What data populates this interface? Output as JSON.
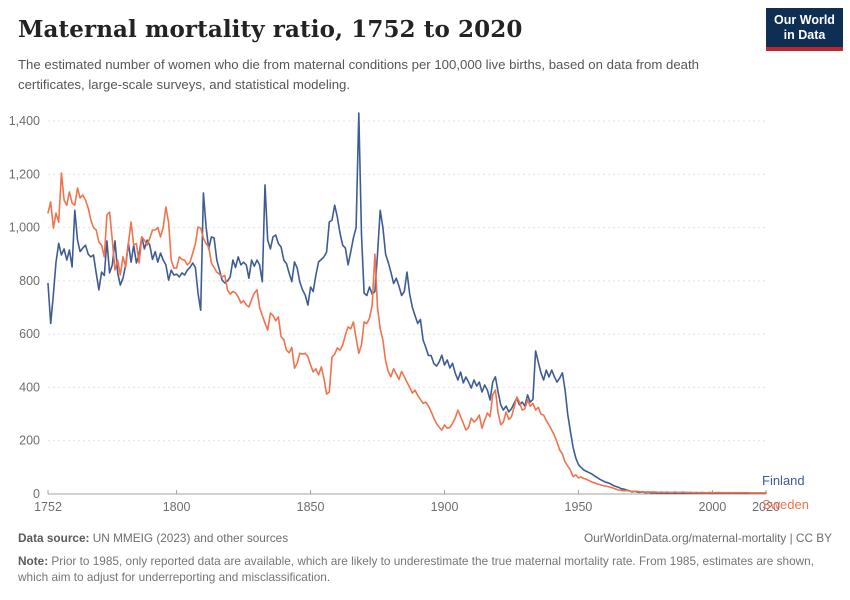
{
  "header": {
    "title": "Maternal mortality ratio, 1752 to 2020",
    "subtitle": "The estimated number of women who die from maternal conditions per 100,000 live births, based on data from death certificates, large-scale surveys, and statistical modeling."
  },
  "logo": {
    "line1": "Our World",
    "line2": "in Data",
    "bg_color": "#0f2e54",
    "accent_color": "#c0272d"
  },
  "chart_data": {
    "type": "line",
    "title": "Maternal mortality ratio, 1752 to 2020",
    "xlabel": "",
    "ylabel": "",
    "x_start": 1752,
    "x_end": 2020,
    "x_ticks": [
      1752,
      1800,
      1850,
      1900,
      1950,
      2000,
      2020
    ],
    "y_ticks": [
      0,
      200,
      400,
      600,
      800,
      1000,
      1200,
      1400
    ],
    "ylim": [
      0,
      1400
    ],
    "grid": "horizontal-dashed",
    "legend_position": "right-of-line-ends",
    "colors": {
      "grid": "#e1e1e1",
      "axis": "#a3a3a3",
      "tick_label": "#6e6e6e"
    },
    "series": [
      {
        "name": "Finland",
        "color": "#3e5c94",
        "values": [
          790,
          640,
          750,
          870,
          941,
          897,
          920,
          878,
          916,
          852,
          1065,
          953,
          910,
          923,
          934,
          900,
          890,
          897,
          829,
          766,
          833,
          820,
          950,
          830,
          860,
          950,
          830,
          784,
          810,
          860,
          942,
          870,
          934,
          867,
          900,
          965,
          920,
          953,
          934,
          880,
          910,
          870,
          904,
          878,
          860,
          803,
          840,
          822,
          825,
          815,
          830,
          822,
          840,
          850,
          867,
          850,
          754,
          690,
          1130,
          1002,
          920,
          965,
          961,
          878,
          840,
          803,
          792,
          800,
          815,
          878,
          850,
          890,
          860,
          870,
          860,
          810,
          878,
          855,
          878,
          860,
          797,
          1160,
          953,
          920,
          965,
          972,
          940,
          927,
          878,
          865,
          830,
          797,
          871,
          848,
          796,
          766,
          747,
          709,
          777,
          760,
          822,
          871,
          880,
          890,
          908,
          1021,
          1028,
          1084,
          1040,
          979,
          934,
          923,
          860,
          908,
          961,
          1000,
          1430,
          972,
          754,
          745,
          777,
          750,
          760,
          900,
          1065,
          1000,
          900,
          870,
          833,
          790,
          810,
          780,
          745,
          760,
          833,
          750,
          700,
          670,
          640,
          655,
          578,
          550,
          520,
          520,
          490,
          480,
          495,
          521,
          484,
          503,
          473,
          491,
          454,
          428,
          458,
          417,
          439,
          420,
          398,
          428,
          405,
          420,
          383,
          409,
          390,
          353,
          420,
          440,
          383,
          334,
          315,
          330,
          308,
          320,
          341,
          360,
          334,
          345,
          330,
          372,
          345,
          355,
          537,
          495,
          454,
          428,
          465,
          439,
          465,
          440,
          420,
          435,
          455,
          390,
          300,
          235,
          175,
          135,
          110,
          100,
          90,
          85,
          80,
          75,
          68,
          62,
          55,
          50,
          45,
          42,
          38,
          32,
          28,
          25,
          20,
          18,
          15,
          12,
          8,
          10,
          7,
          6,
          8,
          5,
          6,
          4,
          5,
          4,
          3,
          4,
          3,
          4,
          3,
          4,
          3,
          4,
          3,
          4,
          3,
          4,
          3,
          4,
          3,
          3,
          4,
          3,
          4,
          3,
          4,
          3,
          4,
          3,
          3,
          4,
          3,
          4,
          3,
          3,
          3,
          3,
          3,
          3,
          3,
          3,
          3,
          3,
          3,
          3,
          3
        ]
      },
      {
        "name": "Sweden",
        "color": "#f0734d",
        "values": [
          1055,
          1096,
          998,
          1054,
          1020,
          1205,
          1103,
          1084,
          1134,
          1092,
          1084,
          1148,
          1111,
          1122,
          1103,
          1073,
          1028,
          1000,
          991,
          946,
          934,
          890,
          1047,
          1058,
          953,
          841,
          878,
          822,
          890,
          852,
          942,
          1021,
          934,
          940,
          867,
          965,
          953,
          934,
          960,
          991,
          991,
          1000,
          965,
          1000,
          1077,
          1020,
          878,
          848,
          848,
          890,
          880,
          878,
          860,
          870,
          904,
          940,
          1002,
          998,
          960,
          940,
          927,
          867,
          850,
          833,
          825,
          815,
          820,
          766,
          750,
          760,
          755,
          740,
          717,
          725,
          710,
          702,
          730,
          754,
          766,
          700,
          670,
          641,
          615,
          679,
          670,
          650,
          665,
          590,
          580,
          540,
          530,
          550,
          472,
          491,
          528,
          525,
          528,
          515,
          484,
          458,
          470,
          447,
          477,
          435,
          375,
          383,
          514,
          525,
          548,
          540,
          559,
          597,
          627,
          620,
          646,
          585,
          528,
          560,
          646,
          640,
          660,
          709,
          900,
          700,
          620,
          578,
          500,
          460,
          440,
          470,
          450,
          430,
          460,
          440,
          420,
          400,
          379,
          390,
          370,
          355,
          340,
          345,
          330,
          310,
          285,
          265,
          251,
          240,
          259,
          247,
          250,
          265,
          285,
          315,
          290,
          266,
          240,
          250,
          285,
          270,
          280,
          296,
          247,
          278,
          304,
          290,
          372,
          390,
          304,
          260,
          270,
          308,
          280,
          290,
          326,
          364,
          345,
          315,
          320,
          353,
          330,
          340,
          315,
          325,
          300,
          296,
          275,
          259,
          240,
          220,
          195,
          165,
          150,
          120,
          105,
          90,
          65,
          72,
          60,
          64,
          58,
          55,
          50,
          45,
          42,
          38,
          35,
          32,
          30,
          28,
          25,
          22,
          18,
          15,
          14,
          12,
          13,
          11,
          10,
          9,
          10,
          8,
          9,
          7,
          8,
          7,
          8,
          7,
          6,
          7,
          6,
          7,
          6,
          6,
          7,
          6,
          6,
          7,
          6,
          6,
          6,
          5,
          6,
          5,
          6,
          5,
          5,
          6,
          5,
          5,
          6,
          5,
          5,
          5,
          5,
          5,
          5,
          5,
          5,
          5,
          5,
          5,
          4,
          4,
          4,
          4,
          4,
          4,
          4
        ]
      }
    ]
  },
  "footer": {
    "datasource_label": "Data source:",
    "datasource_text": " UN MMEIG (2023) and other sources",
    "link_text": "OurWorldinData.org/maternal-mortality | CC BY",
    "note_label": "Note:",
    "note_text": " Prior to 1985, only reported data are available, which are likely to underestimate the true maternal mortality rate. From 1985, estimates are shown, which aim to adjust for underreporting and misclassification."
  }
}
